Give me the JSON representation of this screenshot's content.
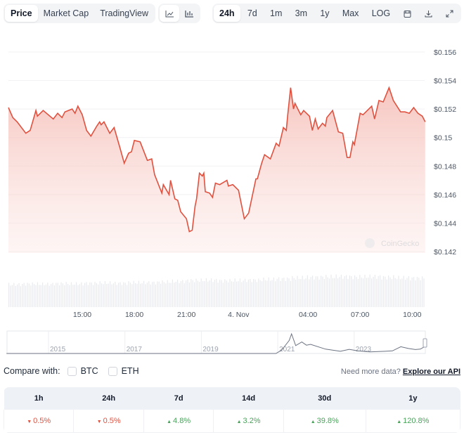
{
  "toolbar": {
    "views": [
      {
        "label": "Price",
        "active": true
      },
      {
        "label": "Market Cap",
        "active": false
      },
      {
        "label": "TradingView",
        "active": false
      }
    ],
    "chart_types": [
      {
        "icon": "line-chart-icon",
        "active": true
      },
      {
        "icon": "candlestick-chart-icon",
        "active": false
      }
    ],
    "ranges": [
      {
        "label": "24h",
        "active": true
      },
      {
        "label": "7d"
      },
      {
        "label": "1m"
      },
      {
        "label": "3m"
      },
      {
        "label": "1y"
      },
      {
        "label": "Max"
      },
      {
        "label": "LOG"
      }
    ],
    "actions": [
      {
        "icon": "calendar-icon"
      },
      {
        "icon": "download-icon"
      },
      {
        "icon": "expand-icon"
      }
    ]
  },
  "watermark": "CoinGecko",
  "colors": {
    "line": "#e0513f",
    "fill": "#f8d3cf",
    "up": "#4aa35b",
    "down": "#e15241"
  },
  "chart_data": {
    "type": "area",
    "ylim": [
      0.142,
      0.156
    ],
    "y_ticks": [
      "$0.142",
      "$0.144",
      "$0.146",
      "$0.148",
      "$0.15",
      "$0.152",
      "$0.154",
      "$0.156"
    ],
    "y_tick_values": [
      0.142,
      0.144,
      0.146,
      0.148,
      0.15,
      0.152,
      0.154,
      0.156
    ],
    "x_ticks": [
      "15:00",
      "18:00",
      "21:00",
      "4. Nov",
      "04:00",
      "07:00",
      "10:00"
    ],
    "x_tick_times": [
      "11-03 15:00",
      "11-03 18:00",
      "11-03 21:00",
      "11-04 00:00",
      "11-04 04:00",
      "11-04 07:00",
      "11-04 10:00"
    ],
    "grid": true,
    "points": [
      [
        "11-03 10:45",
        0.1521
      ],
      [
        "11-03 11:00",
        0.1514
      ],
      [
        "11-03 11:15",
        0.1511
      ],
      [
        "11-03 11:45",
        0.1503
      ],
      [
        "11-03 12:00",
        0.1505
      ],
      [
        "11-03 12:20",
        0.1519
      ],
      [
        "11-03 12:25",
        0.1515
      ],
      [
        "11-03 12:45",
        0.1519
      ],
      [
        "11-03 13:20",
        0.1513
      ],
      [
        "11-03 13:35",
        0.1517
      ],
      [
        "11-03 13:50",
        0.1514
      ],
      [
        "11-03 14:00",
        0.1518
      ],
      [
        "11-03 14:25",
        0.152
      ],
      [
        "11-03 14:35",
        0.1517
      ],
      [
        "11-03 14:45",
        0.1522
      ],
      [
        "11-03 15:00",
        0.1516
      ],
      [
        "11-03 15:15",
        0.1505
      ],
      [
        "11-03 15:30",
        0.1501
      ],
      [
        "11-03 15:50",
        0.1508
      ],
      [
        "11-03 16:00",
        0.1511
      ],
      [
        "11-03 16:05",
        0.1509
      ],
      [
        "11-03 16:15",
        0.1511
      ],
      [
        "11-03 16:35",
        0.1503
      ],
      [
        "11-03 16:50",
        0.1507
      ],
      [
        "11-03 17:10",
        0.1493
      ],
      [
        "11-03 17:25",
        0.1482
      ],
      [
        "11-03 17:40",
        0.1489
      ],
      [
        "11-03 17:50",
        0.149
      ],
      [
        "11-03 18:00",
        0.1498
      ],
      [
        "11-03 18:20",
        0.1497
      ],
      [
        "11-03 18:45",
        0.1484
      ],
      [
        "11-03 19:00",
        0.1485
      ],
      [
        "11-03 19:10",
        0.1474
      ],
      [
        "11-03 19:35",
        0.1461
      ],
      [
        "11-03 19:40",
        0.1467
      ],
      [
        "11-03 20:00",
        0.146
      ],
      [
        "11-03 20:05",
        0.147
      ],
      [
        "11-03 20:20",
        0.1457
      ],
      [
        "11-03 20:30",
        0.1456
      ],
      [
        "11-03 20:40",
        0.1448
      ],
      [
        "11-03 21:00",
        0.1443
      ],
      [
        "11-03 21:10",
        0.1434
      ],
      [
        "11-03 21:20",
        0.1435
      ],
      [
        "11-03 21:30",
        0.1452
      ],
      [
        "11-03 21:35",
        0.1457
      ],
      [
        "11-03 21:45",
        0.1475
      ],
      [
        "11-03 21:55",
        0.1473
      ],
      [
        "11-03 22:00",
        0.1475
      ],
      [
        "11-03 22:05",
        0.1462
      ],
      [
        "11-03 22:20",
        0.1461
      ],
      [
        "11-03 22:30",
        0.1458
      ],
      [
        "11-03 22:40",
        0.1468
      ],
      [
        "11-03 22:55",
        0.1467
      ],
      [
        "11-03 23:20",
        0.147
      ],
      [
        "11-03 23:25",
        0.1466
      ],
      [
        "11-03 23:40",
        0.1467
      ],
      [
        "11-04 00:00",
        0.1463
      ],
      [
        "11-04 00:20",
        0.1443
      ],
      [
        "11-04 00:35",
        0.1447
      ],
      [
        "11-04 01:00",
        0.1471
      ],
      [
        "11-04 01:05",
        0.1471
      ],
      [
        "11-04 01:20",
        0.1482
      ],
      [
        "11-04 01:30",
        0.1488
      ],
      [
        "11-04 01:50",
        0.1485
      ],
      [
        "11-04 02:10",
        0.1496
      ],
      [
        "11-04 02:20",
        0.1494
      ],
      [
        "11-04 02:35",
        0.1507
      ],
      [
        "11-04 02:45",
        0.1505
      ],
      [
        "11-04 02:50",
        0.1516
      ],
      [
        "11-04 03:00",
        0.1535
      ],
      [
        "11-04 03:10",
        0.152
      ],
      [
        "11-04 03:15",
        0.1524
      ],
      [
        "11-04 03:35",
        0.1516
      ],
      [
        "11-04 03:45",
        0.1519
      ],
      [
        "11-04 04:05",
        0.1515
      ],
      [
        "11-04 04:15",
        0.1505
      ],
      [
        "11-04 04:25",
        0.1513
      ],
      [
        "11-04 04:35",
        0.1506
      ],
      [
        "11-04 04:50",
        0.151
      ],
      [
        "11-04 05:00",
        0.1508
      ],
      [
        "11-04 05:05",
        0.1514
      ],
      [
        "11-04 05:25",
        0.1519
      ],
      [
        "11-04 05:45",
        0.1504
      ],
      [
        "11-04 06:00",
        0.1503
      ],
      [
        "11-04 06:15",
        0.1486
      ],
      [
        "11-04 06:25",
        0.1486
      ],
      [
        "11-04 06:35",
        0.1497
      ],
      [
        "11-04 06:40",
        0.1495
      ],
      [
        "11-04 07:00",
        0.1517
      ],
      [
        "11-04 07:10",
        0.1516
      ],
      [
        "11-04 07:25",
        0.1519
      ],
      [
        "11-04 07:40",
        0.1522
      ],
      [
        "11-04 07:50",
        0.1513
      ],
      [
        "11-04 08:05",
        0.1526
      ],
      [
        "11-04 08:20",
        0.1525
      ],
      [
        "11-04 08:40",
        0.1535
      ],
      [
        "11-04 08:55",
        0.1526
      ],
      [
        "11-04 09:20",
        0.1518
      ],
      [
        "11-04 09:35",
        0.1518
      ],
      [
        "11-04 09:50",
        0.1517
      ],
      [
        "11-04 10:05",
        0.1521
      ],
      [
        "11-04 10:20",
        0.1517
      ],
      [
        "11-04 10:35",
        0.1515
      ],
      [
        "11-04 10:45",
        0.1511
      ]
    ],
    "volume_relative": [
      0.72,
      0.74,
      0.73,
      0.75,
      0.74,
      0.76,
      0.77,
      0.76,
      0.78,
      0.78,
      0.8,
      0.82,
      0.85,
      0.86,
      0.84,
      0.85,
      0.86,
      0.88,
      0.9,
      0.93,
      0.95,
      0.96,
      0.97,
      0.96,
      0.97,
      0.95,
      0.93,
      0.92
    ],
    "navigator": {
      "x_ticks": [
        "2015",
        "2017",
        "2019",
        "2021",
        "2023"
      ],
      "points": [
        [
          2013.9,
          0
        ],
        [
          2020.95,
          0
        ],
        [
          2021.1,
          0.15
        ],
        [
          2021.3,
          0.6
        ],
        [
          2021.36,
          0.9
        ],
        [
          2021.47,
          0.36
        ],
        [
          2021.63,
          0.53
        ],
        [
          2021.75,
          0.38
        ],
        [
          2021.86,
          0.42
        ],
        [
          2022.25,
          0.2
        ],
        [
          2022.64,
          0.1
        ],
        [
          2022.87,
          0.19
        ],
        [
          2023.1,
          0.12
        ],
        [
          2023.41,
          0.07
        ],
        [
          2023.8,
          0.1
        ],
        [
          2024.0,
          0.12
        ],
        [
          2024.22,
          0.31
        ],
        [
          2024.42,
          0.23
        ],
        [
          2024.6,
          0.18
        ],
        [
          2024.73,
          0.2
        ],
        [
          2024.84,
          0.31
        ]
      ]
    }
  },
  "compare": {
    "label": "Compare with:",
    "options": [
      "BTC",
      "ETH"
    ]
  },
  "api": {
    "text": "Need more data?",
    "link": "Explore our API"
  },
  "performance": {
    "headers": [
      "1h",
      "24h",
      "7d",
      "14d",
      "30d",
      "1y"
    ],
    "values": [
      {
        "v": "0.5%",
        "dir": "down"
      },
      {
        "v": "0.5%",
        "dir": "down"
      },
      {
        "v": "4.8%",
        "dir": "up"
      },
      {
        "v": "3.2%",
        "dir": "up"
      },
      {
        "v": "39.8%",
        "dir": "up"
      },
      {
        "v": "120.8%",
        "dir": "up"
      }
    ]
  }
}
